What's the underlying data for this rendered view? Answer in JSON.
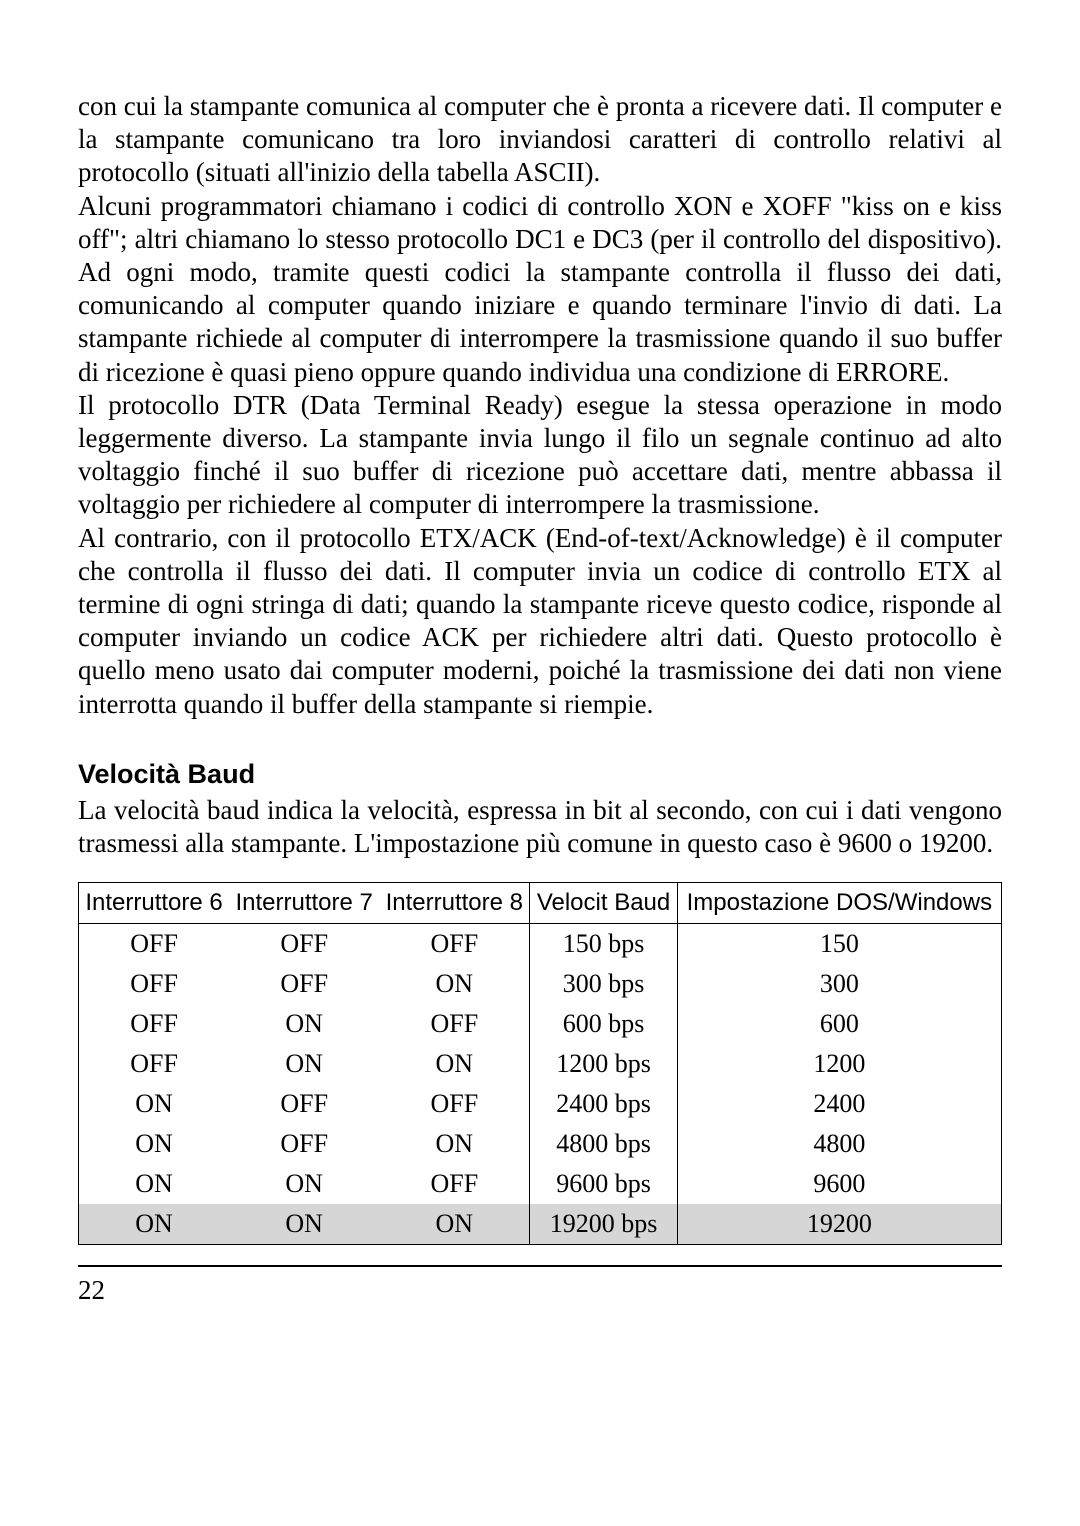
{
  "paragraphs": {
    "p1": "con cui la stampante comunica al computer che è pronta a ricevere dati. Il computer e la stampante comunicano tra loro inviandosi caratteri di controllo relativi al protocollo (situati all'inizio della tabella ASCII).",
    "p2": "Alcuni programmatori chiamano i codici di controllo XON e XOFF \"kiss on e kiss off\"; altri chiamano lo stesso protocollo DC1 e DC3 (per il controllo del dispositivo). Ad ogni modo, tramite questi codici la stampante controlla il flusso dei dati, comunicando al computer quando iniziare e quando terminare l'invio di dati. La stampante richiede al computer di interrompere la trasmissione quando il suo buffer di ricezione è quasi pieno oppure quando individua una condizione di ERRORE.",
    "p3": "Il protocollo DTR (Data Terminal Ready) esegue la stessa operazione in modo leggermente diverso. La stampante invia lungo il filo un segnale continuo ad alto voltaggio finché il suo buffer di ricezione può accettare dati, mentre abbassa il voltaggio per richiedere al computer di interrompere la trasmissione.",
    "p4": "Al contrario, con il protocollo ETX/ACK (End-of-text/Acknowledge) è il computer che controlla il flusso dei dati. Il computer invia un codice di controllo ETX al termine di ogni stringa di dati; quando la stampante riceve questo codice, risponde al computer inviando un codice ACK per richiedere altri dati. Questo protocollo è quello meno usato dai computer moderni, poiché la trasmissione dei dati non viene interrotta quando il buffer della stampante si riempie."
  },
  "section": {
    "heading": "Velocità Baud",
    "intro": "La velocità baud indica la velocità, espressa in bit al secondo, con cui i dati vengono trasmessi alla stampante. L'impostazione più comune in questo caso è 9600 o 19200."
  },
  "table": {
    "columns": [
      "Interruttore 6",
      "Interruttore 7",
      "Interruttore 8",
      "Velocit  Baud",
      "Impostazione DOS/Windows"
    ],
    "rows": [
      [
        "OFF",
        "OFF",
        "OFF",
        "150 bps",
        "150"
      ],
      [
        "OFF",
        "OFF",
        "ON",
        "300 bps",
        "300"
      ],
      [
        "OFF",
        "ON",
        "OFF",
        "600 bps",
        "600"
      ],
      [
        "OFF",
        "ON",
        "ON",
        "1200 bps",
        "1200"
      ],
      [
        "ON",
        "OFF",
        "OFF",
        "2400 bps",
        "2400"
      ],
      [
        "ON",
        "OFF",
        "ON",
        "4800 bps",
        "4800"
      ],
      [
        "ON",
        "ON",
        "OFF",
        "9600 bps",
        "9600"
      ],
      [
        "ON",
        "ON",
        "ON",
        "19200 bps",
        "19200"
      ]
    ],
    "shaded_row_index": 7,
    "border_color": "#000000",
    "shaded_bg": "#d6d6d6",
    "header_font": "Arial",
    "body_font": "Times New Roman",
    "header_fontsize": 24,
    "body_fontsize": 26
  },
  "page_number": "22",
  "colors": {
    "text": "#000000",
    "background": "#ffffff"
  }
}
